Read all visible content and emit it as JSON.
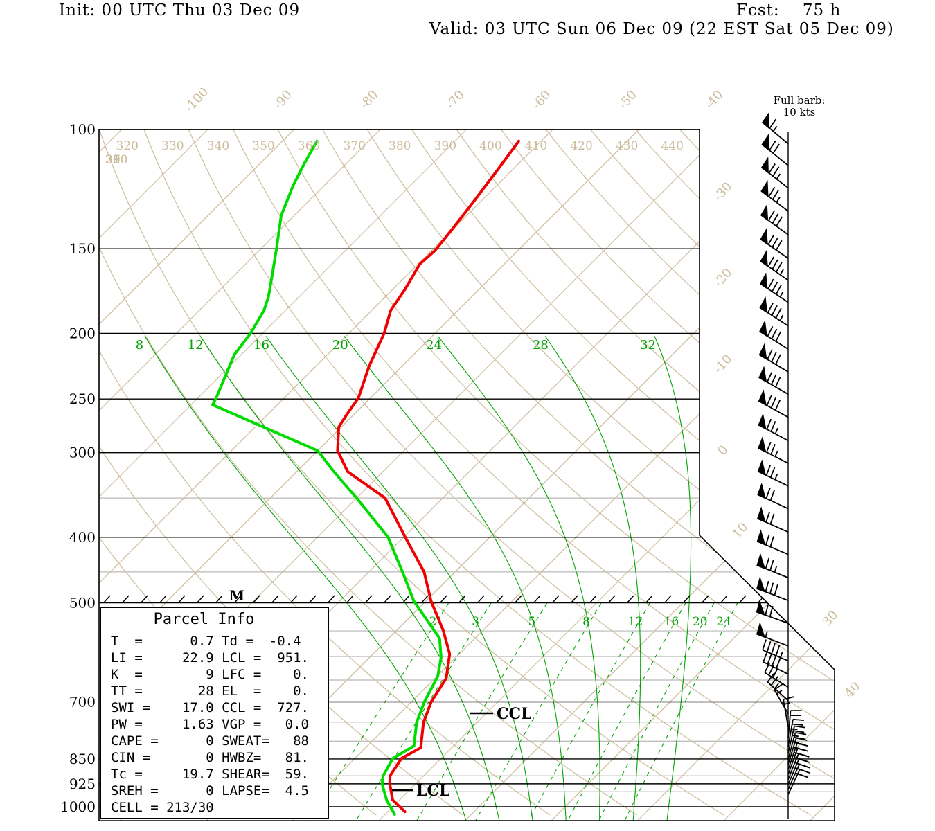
{
  "header": {
    "init": "Init: 00 UTC Thu 03 Dec 09",
    "fcst": "Fcst:    75 h",
    "valid": "Valid: 03 UTC Sun 06 Dec 09 (22 EST Sat 05 Dec 09)"
  },
  "wind_legend": {
    "line1": "Full barb:",
    "line2": "10 kts"
  },
  "markers": {
    "m": "M",
    "ccl": "CCL",
    "lcl": "LCL"
  },
  "parcel_info": {
    "title": "Parcel Info",
    "rows": [
      "T  =      0.7 Td =  -0.4",
      "LI =     22.9 LCL =  951.",
      "K  =        9 LFC =    0.",
      "TT =       28 EL  =    0.",
      "SWI =    17.0 CCL =  727.",
      "PW =     1.63 VGP =   0.0",
      "CAPE =      0 SWEAT=   88",
      "CIN =       0 HWBZ=   81.",
      "Tc =     19.7 SHEAR=  59.",
      "SREH =      0 LAPSE=  4.5",
      "CELL = 213/30"
    ],
    "values": {
      "T": "0.7",
      "Td": "-0.4",
      "LI": "22.9",
      "LCL": "951.",
      "K": "9",
      "LFC": "0.",
      "TT": "28",
      "EL": "0.",
      "SWI": "17.0",
      "CCL": "727.",
      "PW": "1.63",
      "VGP": "0.0",
      "CAPE": "0",
      "SWEAT": "88",
      "CIN": "0",
      "HWBZ": "81.",
      "Tc": "19.7",
      "SHEAR": "59.",
      "SREH": "0",
      "LAPSE": "4.5",
      "CELL": "213/30"
    }
  },
  "axes": {
    "pressure_major": [
      100,
      150,
      200,
      250,
      300,
      400,
      500,
      700,
      850,
      925,
      1000
    ],
    "pressure_minor": [
      350,
      450,
      550,
      600,
      650,
      750,
      800,
      900,
      950
    ],
    "isotherms": [
      -160,
      -150,
      -140,
      -130,
      -120,
      -110,
      -100,
      -90,
      -80,
      -70,
      -60,
      -50,
      -40,
      -30,
      -20,
      -10,
      0,
      10,
      20,
      30,
      40,
      50,
      60
    ],
    "isotherm_labels_top": [
      "-100",
      "-90",
      "-80",
      "-70",
      "-60",
      "-50",
      "-40"
    ],
    "isotherm_labels_right": [
      "-30",
      "-20",
      "-10",
      "0",
      "10",
      "30",
      "40"
    ],
    "dry_adiabats": [
      270,
      280,
      290,
      300,
      310,
      320,
      330,
      340,
      350,
      360,
      370,
      380,
      390,
      400,
      410,
      420,
      430,
      440
    ],
    "dry_adiabat_labels_top": [
      "320",
      "330",
      "340",
      "350",
      "360",
      "370",
      "380",
      "390",
      "400",
      "410",
      "420",
      "430",
      "440"
    ],
    "dry_adiabat_labels_left": [
      "310",
      "300",
      "290",
      "280",
      "270"
    ],
    "moist_adiabats": [
      8,
      12,
      16,
      20,
      24,
      28,
      32
    ],
    "mixing_ratios": [
      2,
      3,
      5,
      8,
      12,
      16,
      20,
      24
    ]
  },
  "colors": {
    "temperature_line": "#f00000",
    "dewpoint_line": "#00dc00",
    "green_grid": "#00a400",
    "tan_grid": "#cdbc9c",
    "gray_grid": "#b8b8b8",
    "black": "#000000"
  },
  "chart_data": {
    "type": "line",
    "subtype": "skew-t-log-p-sounding",
    "pressure_unit": "hPa",
    "temperature_unit": "degC",
    "wind_unit": "kt",
    "full_barb_kts": 10,
    "temperature_profile": [
      [
        104,
        -62.6
      ],
      [
        115,
        -61.7
      ],
      [
        128,
        -60.8
      ],
      [
        140,
        -60.1
      ],
      [
        151,
        -59.6
      ],
      [
        158,
        -59.8
      ],
      [
        172,
        -58.6
      ],
      [
        185,
        -57.8
      ],
      [
        200,
        -55.9
      ],
      [
        224,
        -53.8
      ],
      [
        249,
        -51.4
      ],
      [
        264,
        -50.8
      ],
      [
        275,
        -50.3
      ],
      [
        298,
        -47.7
      ],
      [
        320,
        -44.1
      ],
      [
        350,
        -36.7
      ],
      [
        400,
        -29.8
      ],
      [
        450,
        -23.6
      ],
      [
        497,
        -19.4
      ],
      [
        549,
        -14.6
      ],
      [
        595,
        -11.1
      ],
      [
        646,
        -8.7
      ],
      [
        700,
        -7.7
      ],
      [
        751,
        -6.2
      ],
      [
        818,
        -3.6
      ],
      [
        848,
        -4.6
      ],
      [
        900,
        -3.9
      ],
      [
        925,
        -3.0
      ],
      [
        977,
        -0.8
      ],
      [
        1017,
        2.0
      ]
    ],
    "dewpoint_profile": [
      [
        104,
        -86.0
      ],
      [
        112,
        -84.9
      ],
      [
        121,
        -83.6
      ],
      [
        134,
        -81.5
      ],
      [
        150,
        -78.2
      ],
      [
        166,
        -75.3
      ],
      [
        177,
        -73.5
      ],
      [
        185,
        -72.5
      ],
      [
        200,
        -71.4
      ],
      [
        215,
        -70.8
      ],
      [
        249,
        -67.9
      ],
      [
        255,
        -67.5
      ],
      [
        298,
        -50.0
      ],
      [
        320,
        -45.7
      ],
      [
        350,
        -40.0
      ],
      [
        400,
        -31.8
      ],
      [
        450,
        -26.1
      ],
      [
        497,
        -21.4
      ],
      [
        564,
        -14.1
      ],
      [
        602,
        -11.7
      ],
      [
        642,
        -9.9
      ],
      [
        700,
        -8.5
      ],
      [
        751,
        -7.0
      ],
      [
        813,
        -4.6
      ],
      [
        848,
        -5.6
      ],
      [
        900,
        -4.7
      ],
      [
        925,
        -3.9
      ],
      [
        977,
        -1.5
      ],
      [
        1026,
        1.1
      ]
    ],
    "wind_profile": [
      [
        105,
        310,
        65
      ],
      [
        113,
        309,
        70
      ],
      [
        122,
        308,
        75
      ],
      [
        132,
        307,
        75
      ],
      [
        143,
        306,
        80
      ],
      [
        155,
        305,
        80
      ],
      [
        167,
        305,
        85
      ],
      [
        180,
        304,
        85
      ],
      [
        195,
        303,
        85
      ],
      [
        211,
        302,
        80
      ],
      [
        228,
        301,
        80
      ],
      [
        246,
        300,
        80
      ],
      [
        266,
        299,
        80
      ],
      [
        288,
        298,
        75
      ],
      [
        311,
        297,
        75
      ],
      [
        336,
        296,
        75
      ],
      [
        363,
        295,
        70
      ],
      [
        393,
        294,
        70
      ],
      [
        424,
        293,
        70
      ],
      [
        459,
        292,
        75
      ],
      [
        496,
        291,
        80
      ],
      [
        536,
        290,
        70
      ],
      [
        579,
        291,
        55
      ],
      [
        609,
        293,
        45
      ],
      [
        637,
        296,
        40
      ],
      [
        666,
        302,
        30
      ],
      [
        697,
        312,
        25
      ],
      [
        729,
        330,
        15
      ],
      [
        762,
        350,
        15
      ],
      [
        792,
        5,
        20
      ],
      [
        815,
        10,
        25
      ],
      [
        833,
        13,
        25
      ],
      [
        851,
        15,
        25
      ],
      [
        866,
        17,
        25
      ],
      [
        881,
        19,
        25
      ],
      [
        896,
        20,
        25
      ],
      [
        911,
        22,
        25
      ],
      [
        927,
        23,
        25
      ],
      [
        943,
        24,
        25
      ],
      [
        959,
        25,
        20
      ]
    ],
    "levels_marked": {
      "CCL_hPa": 727,
      "LCL_hPa": 951
    }
  }
}
